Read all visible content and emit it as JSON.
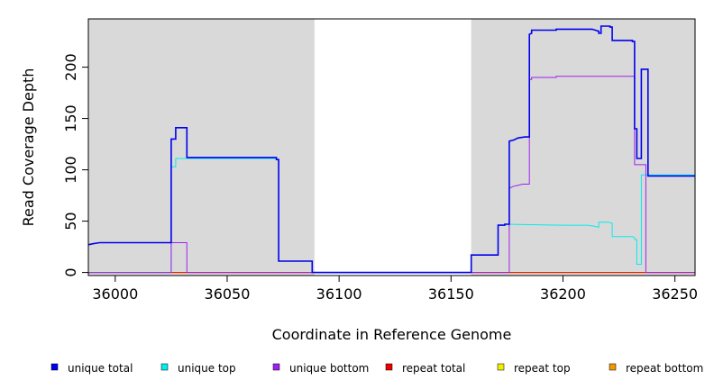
{
  "chart_data": {
    "type": "line",
    "title": "",
    "xlabel": "Coordinate in Reference Genome",
    "ylabel": "Read Coverage Depth",
    "xlim": [
      35988,
      36259
    ],
    "ylim": [
      -3,
      247
    ],
    "x_ticks": [
      36000,
      36050,
      36100,
      36150,
      36200,
      36250
    ],
    "y_ticks": [
      0,
      50,
      100,
      150,
      200
    ],
    "grid": false,
    "legend_position": "bottom",
    "shaded_regions": [
      {
        "x_start": 35988,
        "x_end": 36089,
        "color": "#d9d9d9"
      },
      {
        "x_start": 36159,
        "x_end": 36259,
        "color": "#d9d9d9"
      }
    ],
    "series": [
      {
        "name": "unique total",
        "color": "#0000ee",
        "points": [
          [
            35988,
            27
          ],
          [
            35990,
            28
          ],
          [
            35993,
            29
          ],
          [
            36025,
            29
          ],
          [
            36025,
            130
          ],
          [
            36027,
            130
          ],
          [
            36027,
            141
          ],
          [
            36032,
            141
          ],
          [
            36032,
            112
          ],
          [
            36072,
            112
          ],
          [
            36072,
            110
          ],
          [
            36073,
            110
          ],
          [
            36073,
            11
          ],
          [
            36088,
            11
          ],
          [
            36088,
            0
          ],
          [
            36159,
            0
          ],
          [
            36159,
            17
          ],
          [
            36171,
            17
          ],
          [
            36171,
            46
          ],
          [
            36174,
            46
          ],
          [
            36174,
            47
          ],
          [
            36176,
            47
          ],
          [
            36176,
            128
          ],
          [
            36178,
            129
          ],
          [
            36180,
            131
          ],
          [
            36183,
            132
          ],
          [
            36185,
            132
          ],
          [
            36185,
            232
          ],
          [
            36186,
            233
          ],
          [
            36186,
            236
          ],
          [
            36197,
            236
          ],
          [
            36197,
            237
          ],
          [
            36213,
            237
          ],
          [
            36216,
            235
          ],
          [
            36216,
            233
          ],
          [
            36217,
            233
          ],
          [
            36217,
            240
          ],
          [
            36221,
            240
          ],
          [
            36221,
            239
          ],
          [
            36222,
            239
          ],
          [
            36222,
            226
          ],
          [
            36231,
            226
          ],
          [
            36231,
            225
          ],
          [
            36232,
            225
          ],
          [
            36232,
            140
          ],
          [
            36233,
            140
          ],
          [
            36233,
            137
          ],
          [
            36233,
            111
          ],
          [
            36235,
            111
          ],
          [
            36235,
            198
          ],
          [
            36238,
            198
          ],
          [
            36238,
            94
          ],
          [
            36259,
            94
          ]
        ]
      },
      {
        "name": "unique top",
        "color": "#00eeee",
        "points": [
          [
            35988,
            0
          ],
          [
            36025,
            0
          ],
          [
            36025,
            103
          ],
          [
            36027,
            103
          ],
          [
            36027,
            111
          ],
          [
            36032,
            111
          ],
          [
            36072,
            111
          ],
          [
            36072,
            110
          ],
          [
            36073,
            110
          ],
          [
            36073,
            11
          ],
          [
            36088,
            11
          ],
          [
            36088,
            0
          ],
          [
            36159,
            0
          ],
          [
            36159,
            17
          ],
          [
            36171,
            17
          ],
          [
            36171,
            46
          ],
          [
            36174,
            46
          ],
          [
            36174,
            47
          ],
          [
            36200,
            46
          ],
          [
            36211,
            46
          ],
          [
            36214,
            45
          ],
          [
            36216,
            44
          ],
          [
            36216,
            49
          ],
          [
            36220,
            49
          ],
          [
            36222,
            48
          ],
          [
            36222,
            35
          ],
          [
            36231,
            35
          ],
          [
            36232,
            34
          ],
          [
            36232,
            32
          ],
          [
            36233,
            32
          ],
          [
            36233,
            8
          ],
          [
            36235,
            8
          ],
          [
            36235,
            95
          ],
          [
            36238,
            95
          ],
          [
            36259,
            95
          ]
        ]
      },
      {
        "name": "unique bottom",
        "color": "#a020f0",
        "points": [
          [
            35988,
            0
          ],
          [
            36025,
            0
          ],
          [
            36025,
            29
          ],
          [
            36032,
            29
          ],
          [
            36032,
            0
          ],
          [
            36174,
            0
          ],
          [
            36176,
            0
          ],
          [
            36176,
            82
          ],
          [
            36178,
            84
          ],
          [
            36180,
            85
          ],
          [
            36182,
            86
          ],
          [
            36185,
            86
          ],
          [
            36185,
            188
          ],
          [
            36186,
            188
          ],
          [
            36186,
            190
          ],
          [
            36197,
            190
          ],
          [
            36197,
            191
          ],
          [
            36231,
            191
          ],
          [
            36232,
            191
          ],
          [
            36232,
            105
          ],
          [
            36237,
            105
          ],
          [
            36237,
            0
          ],
          [
            36259,
            0
          ]
        ]
      },
      {
        "name": "repeat total",
        "color": "#ee0000",
        "points": [
          [
            35988,
            0
          ],
          [
            36259,
            0
          ]
        ]
      },
      {
        "name": "repeat top",
        "color": "#eeee00",
        "points": [
          [
            35988,
            0
          ],
          [
            36259,
            0
          ]
        ]
      },
      {
        "name": "repeat bottom",
        "color": "#ee9a00",
        "points": [
          [
            35988,
            0
          ],
          [
            36259,
            0
          ]
        ]
      }
    ]
  },
  "legend": [
    {
      "label": "unique total",
      "color": "#0000ee"
    },
    {
      "label": "unique top",
      "color": "#00eeee"
    },
    {
      "label": "unique bottom",
      "color": "#a020f0"
    },
    {
      "label": "repeat total",
      "color": "#ee0000"
    },
    {
      "label": "repeat top",
      "color": "#eeee00"
    },
    {
      "label": "repeat bottom",
      "color": "#ee9a00"
    }
  ]
}
